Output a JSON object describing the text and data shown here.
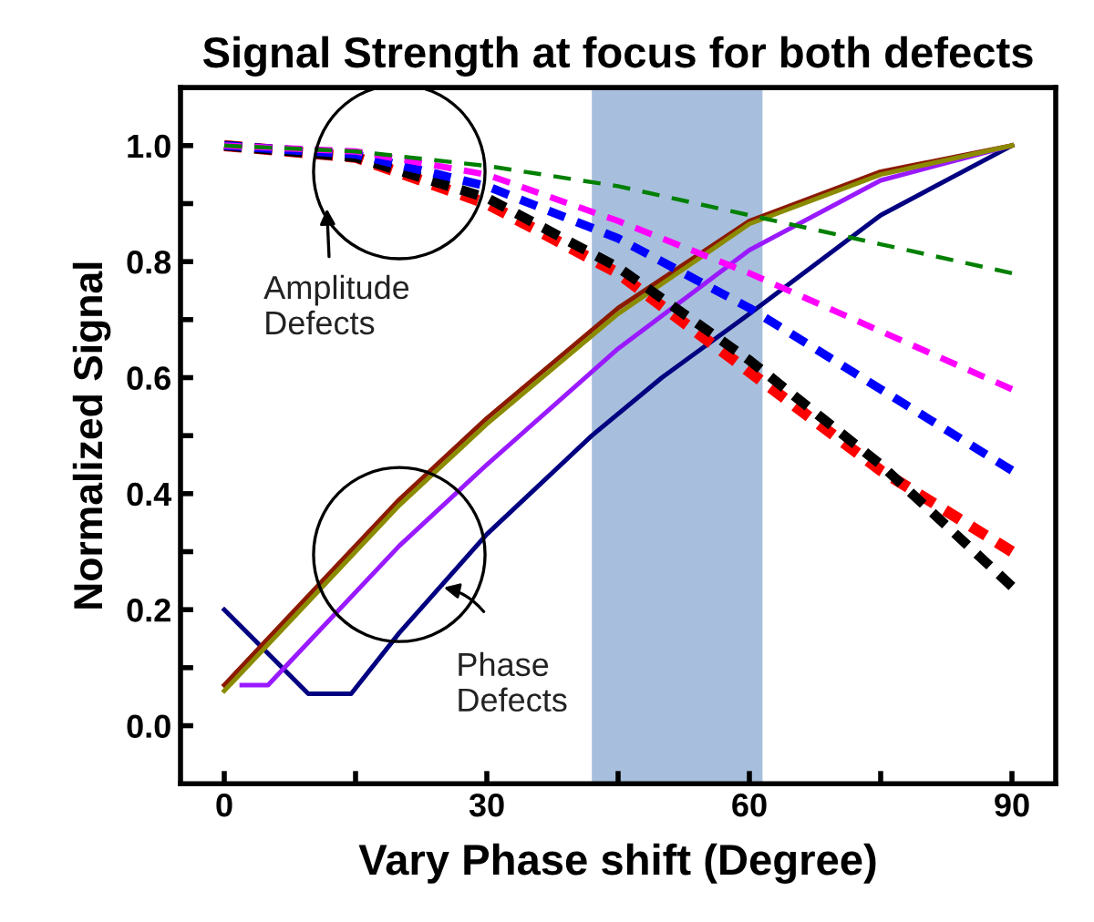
{
  "chart_data": {
    "type": "line",
    "title": "Signal Strength at focus for both defects",
    "xlabel": "Vary Phase shift (Degree)",
    "ylabel": "Normalized Signal",
    "xlim": [
      -5,
      95
    ],
    "ylim": [
      -0.1,
      1.1
    ],
    "xticks": [
      0,
      {
        "value": 15,
        "label": null
      },
      30,
      {
        "value": 45,
        "label": null
      },
      60,
      {
        "value": 75,
        "label": null
      },
      90
    ],
    "yticks": [
      {
        "value": 0,
        "label": "0.0"
      },
      {
        "value": 0.1,
        "label": null
      },
      0.2,
      {
        "value": 0.3,
        "label": null
      },
      0.4,
      {
        "value": 0.5,
        "label": null
      },
      0.6,
      {
        "value": 0.7,
        "label": null
      },
      0.8,
      {
        "value": 0.9,
        "label": null
      },
      {
        "value": 1,
        "label": "1.0"
      }
    ],
    "grid": false,
    "marker": "none",
    "series": [
      {
        "color": "#008000",
        "line_style": "dashed",
        "x": [
          0,
          15,
          30,
          45,
          60,
          75,
          90
        ],
        "values": [
          1.0,
          0.99,
          0.965,
          0.93,
          0.88,
          0.83,
          0.78
        ]
      },
      {
        "color": "#ff00ff",
        "line_style": "dashed",
        "x": [
          0,
          15,
          30,
          45,
          60,
          75,
          90
        ],
        "values": [
          1.0,
          0.99,
          0.95,
          0.87,
          0.78,
          0.68,
          0.58
        ]
      },
      {
        "color": "#0000ff",
        "line_style": "dashed",
        "x": [
          0,
          15,
          30,
          45,
          60,
          75,
          90
        ],
        "values": [
          1.0,
          0.985,
          0.93,
          0.84,
          0.72,
          0.58,
          0.44
        ]
      },
      {
        "color": "#000000",
        "line_style": "dashed",
        "x": [
          0,
          15,
          30,
          45,
          60,
          75,
          90
        ],
        "values": [
          1.0,
          0.98,
          0.91,
          0.79,
          0.63,
          0.45,
          0.24
        ]
      },
      {
        "color": "#ff0000",
        "line_style": "dashed",
        "x": [
          0,
          15,
          30,
          45,
          60,
          75,
          90
        ],
        "values": [
          1.0,
          0.98,
          0.9,
          0.78,
          0.61,
          0.44,
          0.3
        ]
      },
      {
        "color": "#000080",
        "line_style": "solid",
        "x": [
          0,
          9.6,
          14.5,
          20,
          30,
          42,
          50,
          60,
          75,
          90
        ],
        "values": [
          0.2,
          0.055,
          0.055,
          0.16,
          0.33,
          0.5,
          0.6,
          0.71,
          0.88,
          1.0
        ]
      },
      {
        "color": "#9a1aff",
        "line_style": "solid",
        "x": [
          2,
          5,
          10,
          20,
          30,
          45,
          60,
          75,
          90
        ],
        "values": [
          0.07,
          0.07,
          0.15,
          0.31,
          0.45,
          0.65,
          0.82,
          0.94,
          1.0
        ]
      },
      {
        "color": "#8b1a00",
        "line_style": "solid",
        "x": [
          0,
          10,
          20,
          30,
          45,
          60,
          75,
          90
        ],
        "values": [
          0.07,
          0.23,
          0.39,
          0.53,
          0.72,
          0.87,
          0.955,
          1.0
        ]
      },
      {
        "color": "#8b8b00",
        "line_style": "solid",
        "x": [
          0,
          10,
          20,
          30,
          45,
          60,
          75,
          90
        ],
        "values": [
          0.06,
          0.22,
          0.38,
          0.52,
          0.71,
          0.865,
          0.95,
          1.0
        ]
      }
    ],
    "bands": [
      {
        "axis": "x",
        "from": 42,
        "to": 61.5,
        "color": "#a7bfdc"
      }
    ],
    "annotations": [
      "Amplitude\nDefects",
      "Phase\nDefects"
    ]
  }
}
